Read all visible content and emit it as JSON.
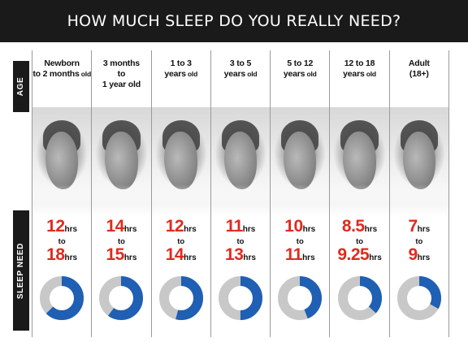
{
  "title": "HOW MUCH SLEEP DO YOU REALLY NEED?",
  "side_labels": {
    "age": "AGE",
    "sleep_need": "SLEEP NEED"
  },
  "colors": {
    "accent_red": "#e02a1f",
    "pie_blue": "#1f5fb4",
    "pie_gray": "#c8c8c8",
    "bar_black": "#1a1a1a"
  },
  "columns": [
    {
      "age_line1": "Newborn",
      "age_line2": "2 months",
      "age_line2_suffix": " old",
      "age_line2_prefix": "to ",
      "min": "12",
      "max": "18",
      "unit": "hrs",
      "to": "to",
      "pie_fraction": 0.625
    },
    {
      "age_line1": "3 months",
      "age_line2_prefix": "to",
      "age_line2": "",
      "age_line3": "1 year old",
      "min": "14",
      "max": "15",
      "unit": "hrs",
      "to": "to",
      "pie_fraction": 0.6
    },
    {
      "age_line1": "1 to 3",
      "age_line2_prefix": "",
      "age_line2": "years",
      "age_line2_suffix": " old",
      "min": "12",
      "max": "14",
      "unit": "hrs",
      "to": "to",
      "pie_fraction": 0.54
    },
    {
      "age_line1": "3 to 5",
      "age_line2_prefix": "",
      "age_line2": "years",
      "age_line2_suffix": " old",
      "min": "11",
      "max": "13",
      "unit": "hrs",
      "to": "to",
      "pie_fraction": 0.5
    },
    {
      "age_line1": "5 to 12",
      "age_line2_prefix": "",
      "age_line2": "years",
      "age_line2_suffix": " old",
      "min": "10",
      "max": "11",
      "unit": "hrs",
      "to": "to",
      "pie_fraction": 0.44
    },
    {
      "age_line1": "12 to 18",
      "age_line2_prefix": "",
      "age_line2": "years",
      "age_line2_suffix": " old",
      "min": "8.5",
      "max": "9.25",
      "unit": "hrs",
      "to": "to",
      "pie_fraction": 0.37
    },
    {
      "age_line1": "Adult",
      "age_line2_prefix": "",
      "age_line2": "(18+)",
      "age_line2_suffix": "",
      "min": "7",
      "max": "9",
      "unit": "hrs",
      "to": "to",
      "pie_fraction": 0.33
    }
  ]
}
